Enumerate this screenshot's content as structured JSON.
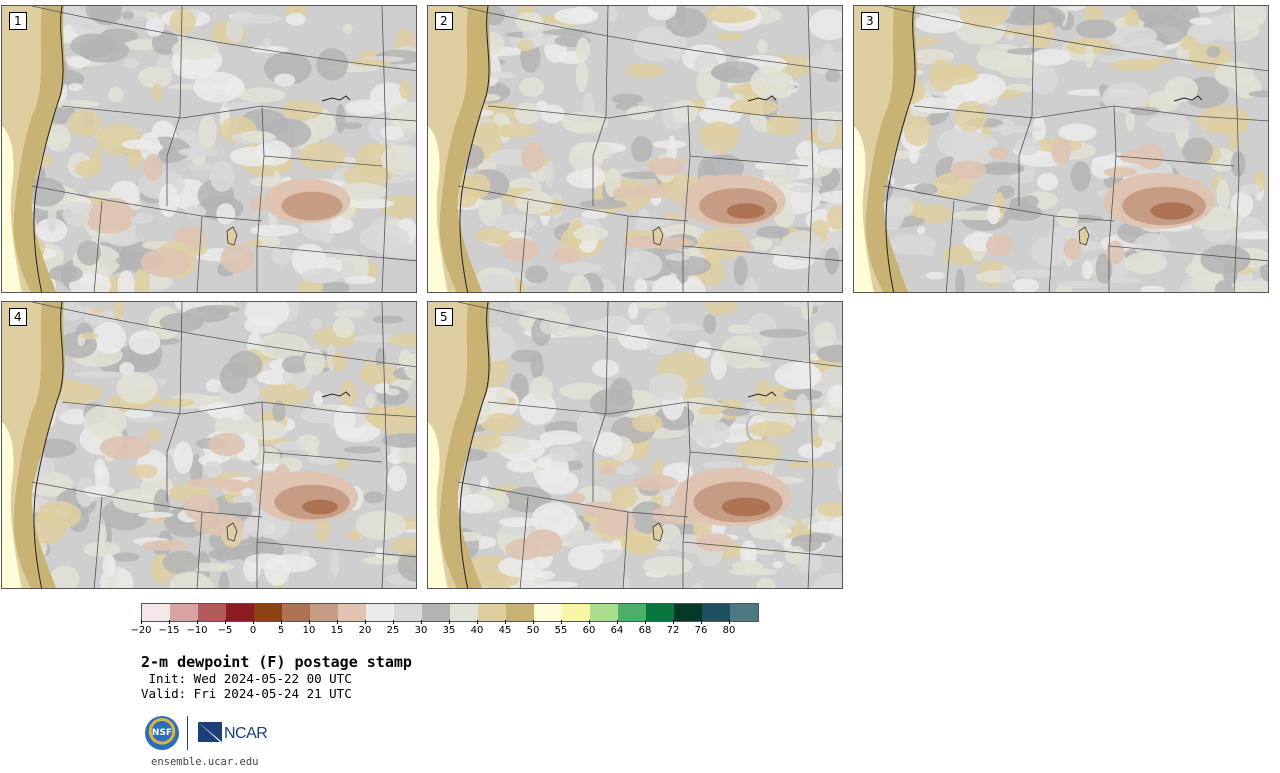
{
  "panels": [
    {
      "label": "1",
      "intensity": 0.45
    },
    {
      "label": "2",
      "intensity": 0.75
    },
    {
      "label": "3",
      "intensity": 0.85
    },
    {
      "label": "4",
      "intensity": 0.7
    },
    {
      "label": "5",
      "intensity": 0.95
    }
  ],
  "colorbar": {
    "colors": [
      "#f6e8e8",
      "#d8a3a3",
      "#b15a5a",
      "#8c1c24",
      "#8a4313",
      "#ad7352",
      "#c69d84",
      "#dfc4b2",
      "#ebebeb",
      "#d9d9d9",
      "#b4b4b4",
      "#e2e2d6",
      "#dfcfa0",
      "#c8b375",
      "#fffcd8",
      "#f8f5a6",
      "#a8de8c",
      "#4eae68",
      "#08763e",
      "#053a26",
      "#1c5060",
      "#4c7a80"
    ],
    "ticks": [
      "-20",
      "-15",
      "-10",
      "-5",
      "0",
      "5",
      "10",
      "15",
      "20",
      "25",
      "30",
      "35",
      "40",
      "45",
      "50",
      "55",
      "60",
      "64",
      "68",
      "72",
      "76",
      "80"
    ]
  },
  "title": "2-m dewpoint (F) postage stamp",
  "init": " Init: Wed 2024-05-22 00 UTC",
  "valid": "Valid: Fri 2024-05-24 21 UTC",
  "logos": {
    "nsf": "NSF",
    "ncar": "NCAR"
  },
  "site": "ensemble.ucar.edu"
}
